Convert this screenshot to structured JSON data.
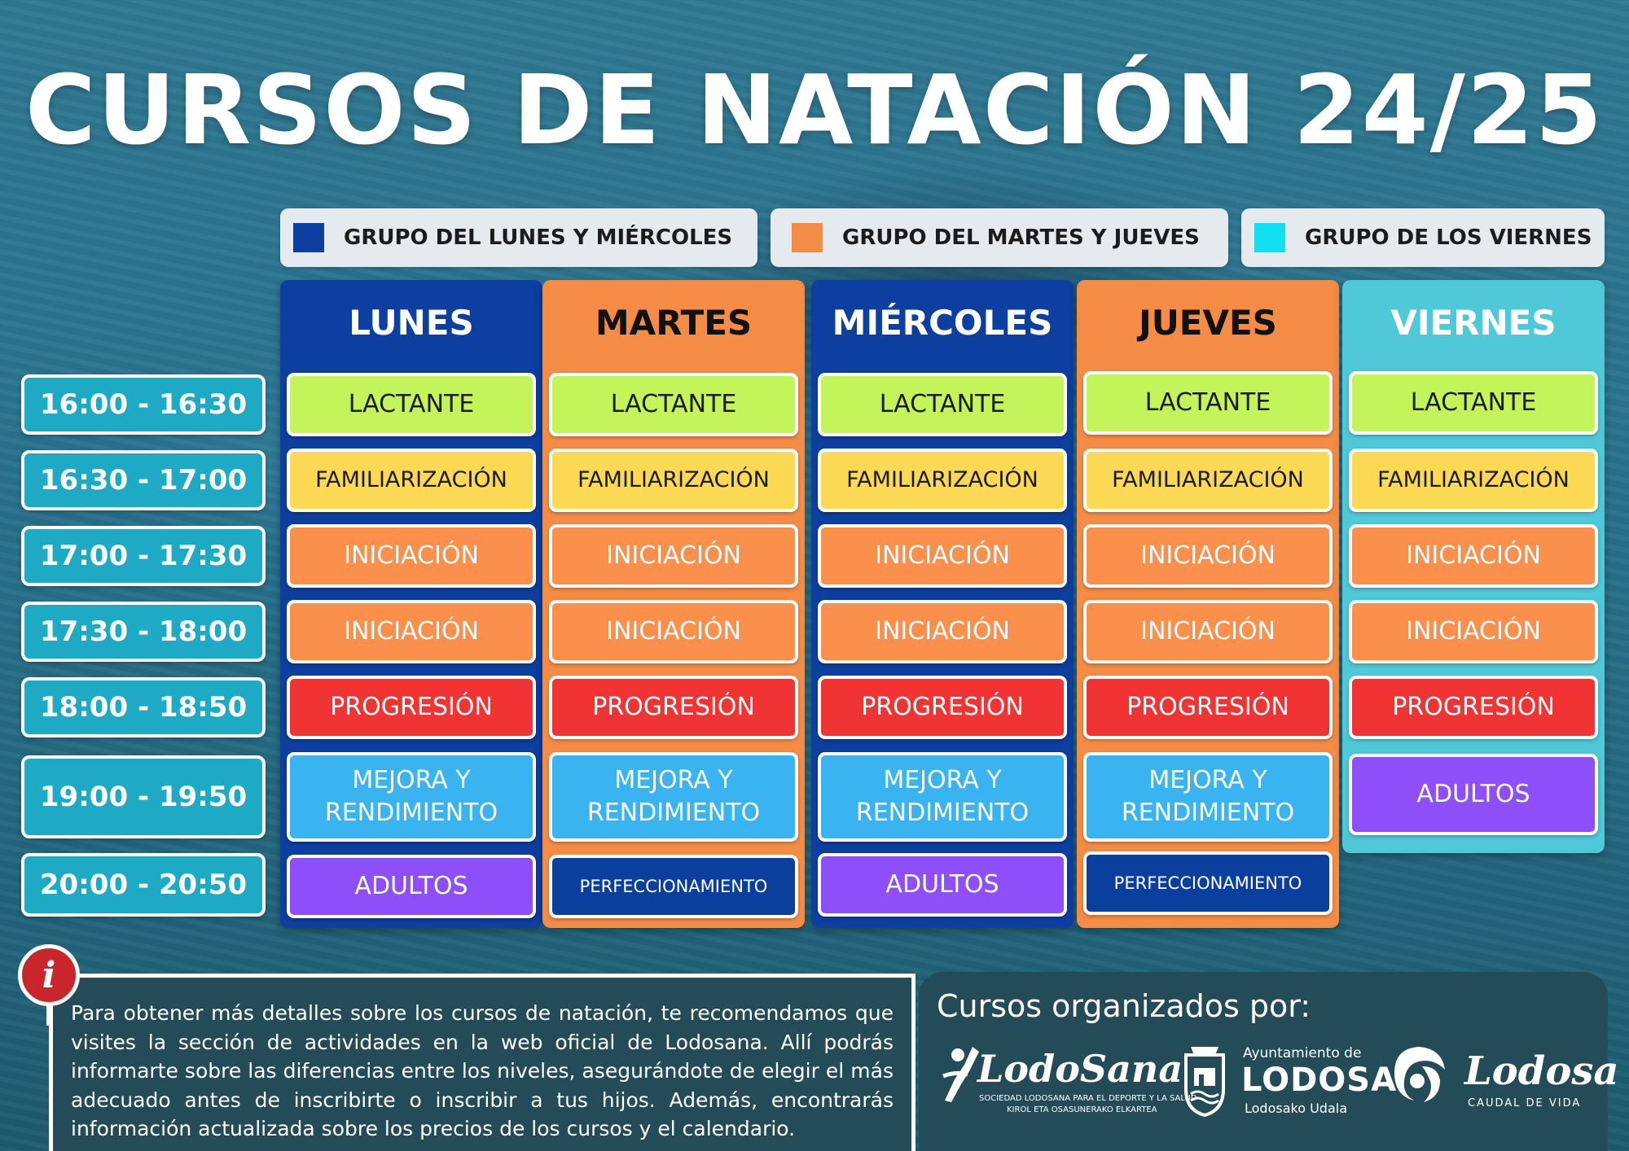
{
  "title": "CURSOS DE NATACIÓN 24/25",
  "legend": [
    {
      "label": "GRUPO DEL LUNES Y MIÉRCOLES",
      "color": "#0c3fa0"
    },
    {
      "label": "GRUPO DEL MARTES Y JUEVES",
      "color": "#f58c45"
    },
    {
      "label": "GRUPO DE LOS VIERNES",
      "color": "#12e0f0"
    }
  ],
  "times": [
    "16:00 - 16:30",
    "16:30 - 17:00",
    "17:00 - 17:30",
    "17:30 - 18:00",
    "18:00 - 18:50",
    "19:00 - 19:50",
    "20:00 - 20:50"
  ],
  "days": [
    {
      "name": "LUNES",
      "color": "#0c3fa0",
      "slots": [
        "LACTANTE",
        "FAMILIARIZACIÓN",
        "INICIACIÓN",
        "INICIACIÓN",
        "PROGRESIÓN",
        "MEJORA Y RENDIMIENTO",
        "ADULTOS"
      ]
    },
    {
      "name": "MARTES",
      "color": "#f58c45",
      "slots": [
        "LACTANTE",
        "FAMILIARIZACIÓN",
        "INICIACIÓN",
        "INICIACIÓN",
        "PROGRESIÓN",
        "MEJORA Y RENDIMIENTO",
        "PERFECCIONAMIENTO"
      ]
    },
    {
      "name": "MIÉRCOLES",
      "color": "#0c3fa0",
      "slots": [
        "LACTANTE",
        "FAMILIARIZACIÓN",
        "INICIACIÓN",
        "INICIACIÓN",
        "PROGRESIÓN",
        "MEJORA Y RENDIMIENTO",
        "ADULTOS"
      ]
    },
    {
      "name": "JUEVES",
      "color": "#f58c45",
      "slots": [
        "LACTANTE",
        "FAMILIARIZACIÓN",
        "INICIACIÓN",
        "INICIACIÓN",
        "PROGRESIÓN",
        "MEJORA Y RENDIMIENTO",
        "PERFECCIONAMIENTO"
      ]
    },
    {
      "name": "VIERNES",
      "color": "#4fc9d8",
      "slots": [
        "LACTANTE",
        "FAMILIARIZACIÓN",
        "INICIACIÓN",
        "INICIACIÓN",
        "PROGRESIÓN",
        "ADULTOS"
      ]
    }
  ],
  "info": {
    "icon": "info-icon",
    "text": "Para obtener más detalles sobre los cursos de natación, te recomendamos que visites la sección de actividades en la web oficial de Lodosana. Allí podrás informarte sobre las diferencias entre los niveles, asegurándote de elegir el más adecuado antes de inscribirte o inscribir a tus hijos. Además, encontrarás información actualizada sobre los precios de los cursos y el calendario."
  },
  "organizers": {
    "title": "Cursos organizados por:",
    "lodosana": {
      "name": "LodoSana",
      "sub1": "SOCIEDAD LODOSANA PARA EL DEPORTE Y LA SALUD",
      "sub2": "KIROL ETA OSASUNERAKO ELKARTEA"
    },
    "ayuntamiento": {
      "line1": "Ayuntamiento de",
      "line2": "LODOSA",
      "line3": "Lodosako Udala"
    },
    "lodosa": {
      "name": "Lodosa",
      "sub": "CAUDAL DE VIDA"
    }
  }
}
